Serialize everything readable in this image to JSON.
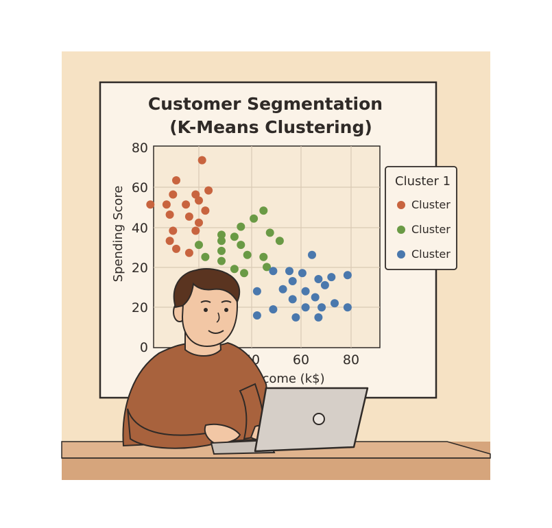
{
  "colors": {
    "wall": "#f6e2c4",
    "board": "#fbf3e8",
    "plot_area": "#f7ead6",
    "grid": "#d9c9b4",
    "desk": "#d6a57c",
    "shirt": "#a8623d",
    "hair": "#5a3420",
    "skin": "#f2c7a5",
    "laptop": "#d6cfc8",
    "cluster_red": "#c8643f",
    "cluster_green": "#6a9a45",
    "cluster_blue": "#4a78ad"
  },
  "chart": {
    "title_line1": "Customer Segmentation",
    "title_line2": "(K-Means Clustering)",
    "ylabel": "Spending Score",
    "xlabel_visible": "l Income (k$)",
    "y_ticks": [
      "0",
      "20",
      "20",
      "40",
      "60",
      "80"
    ],
    "x_ticks": [
      "40",
      "60",
      "80"
    ],
    "legend": {
      "title": "Cluster 1",
      "items": [
        {
          "label": "Cluster",
          "color": "#c8643f"
        },
        {
          "label": "Cluster",
          "color": "#6a9a45"
        },
        {
          "label": "Cluster",
          "color": "#4a78ad"
        }
      ]
    }
  },
  "chart_data": {
    "type": "scatter",
    "title": "Customer Segmentation (K-Means Clustering)",
    "ylabel": "Spending Score",
    "xlabel": "l Income (k$)",
    "xlim": [
      20,
      90
    ],
    "ylim": [
      0,
      100
    ],
    "grid": true,
    "legend_position": "right",
    "series": [
      {
        "name": "Cluster",
        "color": "#c8643f",
        "points": [
          [
            27,
            83
          ],
          [
            35,
            93
          ],
          [
            26,
            76
          ],
          [
            33,
            76
          ],
          [
            24,
            71
          ],
          [
            19,
            71
          ],
          [
            30,
            71
          ],
          [
            37,
            78
          ],
          [
            34,
            73
          ],
          [
            25,
            66
          ],
          [
            31,
            65
          ],
          [
            36,
            68
          ],
          [
            34,
            62
          ],
          [
            26,
            58
          ],
          [
            33,
            58
          ],
          [
            25,
            53
          ],
          [
            27,
            49
          ],
          [
            31,
            47
          ]
        ]
      },
      {
        "name": "Cluster",
        "color": "#6a9a45",
        "points": [
          [
            36,
            45
          ],
          [
            41,
            56
          ],
          [
            47,
            60
          ],
          [
            54,
            68
          ],
          [
            51,
            64
          ],
          [
            45,
            55
          ],
          [
            41,
            53
          ],
          [
            56,
            57
          ],
          [
            59,
            53
          ],
          [
            34,
            51
          ],
          [
            41,
            48
          ],
          [
            47,
            51
          ],
          [
            41,
            43
          ],
          [
            45,
            39
          ],
          [
            49,
            46
          ],
          [
            54,
            45
          ],
          [
            48,
            37
          ],
          [
            55,
            40
          ],
          [
            41,
            29
          ]
        ]
      },
      {
        "name": "Cluster",
        "color": "#4a78ad",
        "points": [
          [
            69,
            46
          ],
          [
            57,
            38
          ],
          [
            62,
            38
          ],
          [
            66,
            37
          ],
          [
            71,
            34
          ],
          [
            75,
            35
          ],
          [
            63,
            33
          ],
          [
            73,
            31
          ],
          [
            80,
            36
          ],
          [
            52,
            28
          ],
          [
            60,
            29
          ],
          [
            67,
            28
          ],
          [
            70,
            25
          ],
          [
            76,
            22
          ],
          [
            63,
            24
          ],
          [
            67,
            20
          ],
          [
            57,
            19
          ],
          [
            72,
            20
          ],
          [
            52,
            16
          ],
          [
            64,
            15
          ],
          [
            71,
            15
          ],
          [
            80,
            20
          ]
        ]
      }
    ]
  }
}
